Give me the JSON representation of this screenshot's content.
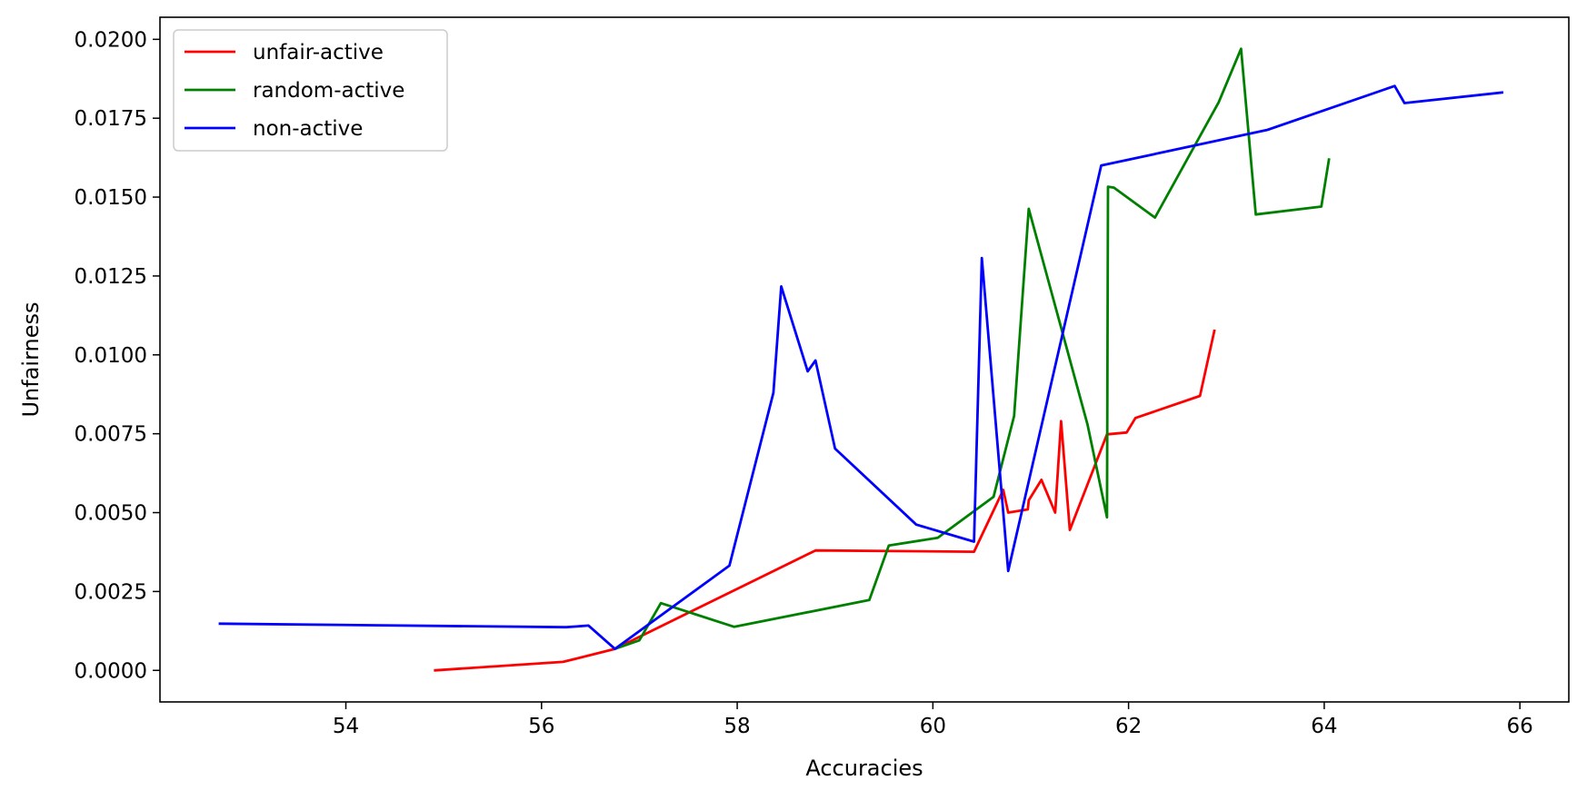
{
  "chart_data": {
    "type": "line",
    "title": "",
    "xlabel": "Accuracies",
    "ylabel": "Unfairness",
    "xlim": [
      52.1,
      66.5
    ],
    "ylim": [
      -0.001,
      0.0207
    ],
    "xticks": [
      54,
      56,
      58,
      60,
      62,
      64,
      66
    ],
    "xtick_labels": [
      "54",
      "56",
      "58",
      "60",
      "62",
      "64",
      "66"
    ],
    "yticks": [
      0,
      0.0025,
      0.005,
      0.0075,
      0.01,
      0.0125,
      0.015,
      0.0175,
      0.02
    ],
    "ytick_labels": [
      "0.0000",
      "0.0025",
      "0.0050",
      "0.0075",
      "0.0100",
      "0.0125",
      "0.0150",
      "0.0175",
      "0.0200"
    ],
    "grid": false,
    "legend_position": "top-left",
    "series": [
      {
        "name": "unfair-active",
        "color": "#ff0000",
        "points": [
          [
            54.9,
            0.0
          ],
          [
            56.22,
            0.00027
          ],
          [
            56.75,
            0.00068
          ],
          [
            58.8,
            0.0038
          ],
          [
            60.42,
            0.00376
          ],
          [
            60.72,
            0.00572
          ],
          [
            60.77,
            0.005
          ],
          [
            60.97,
            0.0051
          ],
          [
            60.98,
            0.00539
          ],
          [
            61.11,
            0.00604
          ],
          [
            61.25,
            0.005
          ],
          [
            61.31,
            0.0079
          ],
          [
            61.4,
            0.00445
          ],
          [
            61.78,
            0.00748
          ],
          [
            61.98,
            0.00754
          ],
          [
            62.07,
            0.008
          ],
          [
            62.73,
            0.0087
          ],
          [
            62.88,
            0.0108
          ]
        ]
      },
      {
        "name": "random-active",
        "color": "#008000",
        "points": [
          [
            56.75,
            0.00068
          ],
          [
            57.0,
            0.00095
          ],
          [
            57.22,
            0.00213
          ],
          [
            57.97,
            0.00138
          ],
          [
            59.35,
            0.00223
          ],
          [
            59.55,
            0.00396
          ],
          [
            60.05,
            0.0042
          ],
          [
            60.62,
            0.0055
          ],
          [
            60.83,
            0.00806
          ],
          [
            60.98,
            0.01463
          ],
          [
            61.58,
            0.0078
          ],
          [
            61.78,
            0.00485
          ],
          [
            61.79,
            0.01533
          ],
          [
            61.85,
            0.0153
          ],
          [
            62.27,
            0.01435
          ],
          [
            62.92,
            0.018
          ],
          [
            63.15,
            0.0197
          ],
          [
            63.3,
            0.01445
          ],
          [
            63.97,
            0.0147
          ],
          [
            64.05,
            0.01623
          ]
        ]
      },
      {
        "name": "non-active",
        "color": "#0000ff",
        "points": [
          [
            52.7,
            0.00148
          ],
          [
            56.25,
            0.00137
          ],
          [
            56.48,
            0.00142
          ],
          [
            56.75,
            0.00068
          ],
          [
            57.92,
            0.00332
          ],
          [
            58.37,
            0.0088
          ],
          [
            58.45,
            0.01217
          ],
          [
            58.72,
            0.00948
          ],
          [
            58.8,
            0.00982
          ],
          [
            59.0,
            0.00703
          ],
          [
            59.83,
            0.00462
          ],
          [
            60.42,
            0.00408
          ],
          [
            60.5,
            0.01307
          ],
          [
            60.77,
            0.00315
          ],
          [
            61.72,
            0.016
          ],
          [
            63.42,
            0.01713
          ],
          [
            64.72,
            0.01852
          ],
          [
            64.82,
            0.01798
          ],
          [
            65.83,
            0.01832
          ]
        ]
      }
    ]
  }
}
